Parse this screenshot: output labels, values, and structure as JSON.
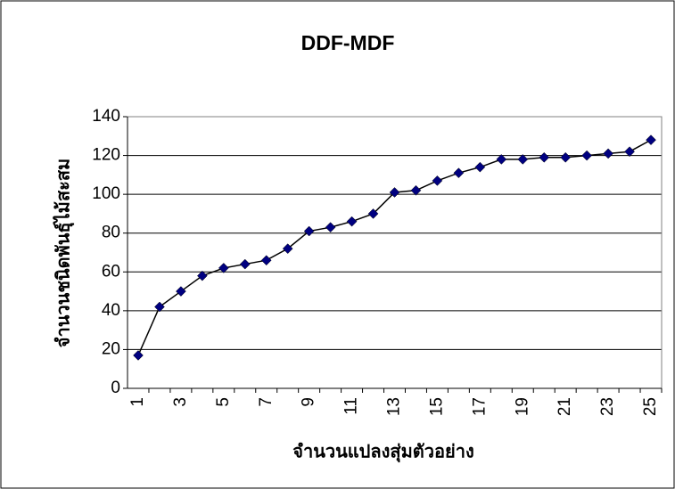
{
  "chart_data": {
    "type": "line",
    "title": "DDF-MDF",
    "x_label": "จำนวนแปลงสุ่มตัวอย่าง",
    "y_label": "จำนวนชนิดพันธุ์ไม้สะสม",
    "categories": [
      "1",
      null,
      "3",
      null,
      "5",
      null,
      "7",
      null,
      "9",
      null,
      "11",
      null,
      "13",
      null,
      "15",
      null,
      "17",
      null,
      "19",
      null,
      "21",
      null,
      "23",
      null,
      "25"
    ],
    "series": [
      {
        "name": "DDF-MDF",
        "color": "#000080",
        "values": [
          17,
          42,
          50,
          58,
          62,
          64,
          66,
          72,
          81,
          83,
          86,
          90,
          101,
          102,
          107,
          111,
          114,
          118,
          118,
          119,
          119,
          120,
          121,
          122,
          128
        ]
      }
    ],
    "ylim": [
      0,
      140
    ],
    "yticks": [
      0,
      20,
      40,
      60,
      80,
      100,
      120,
      140
    ],
    "grid": true
  }
}
